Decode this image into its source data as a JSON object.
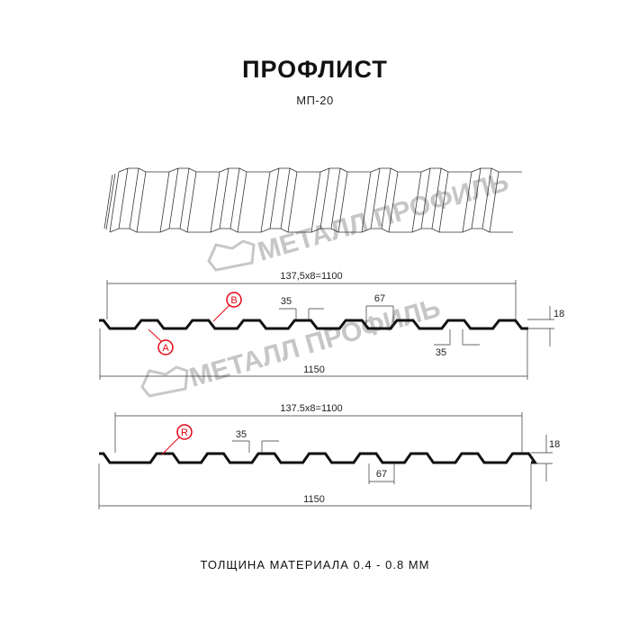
{
  "header": {
    "title": "ПРОФЛИСТ",
    "subtitle": "МП-20"
  },
  "watermark": {
    "text": "МЕТАЛЛ ПРОФИЛЬ",
    "color": "#bdbdbd"
  },
  "profile_1": {
    "total_label": "137,5x8=1100",
    "width_label": "1150",
    "crest_label": "35",
    "trough_label": "35",
    "pitch_top_label": "67",
    "height_label": "18",
    "callout_a": "A",
    "callout_b": "B"
  },
  "profile_2": {
    "total_label": "137.5x8=1100",
    "width_label": "1150",
    "crest_label": "35",
    "pitch_label": "67",
    "height_label": "18",
    "callout_r": "R"
  },
  "accent_color": "#e30613",
  "footer": {
    "text": "ТОЛЩИНА МАТЕРИАЛА 0.4 - 0.8 ММ"
  }
}
